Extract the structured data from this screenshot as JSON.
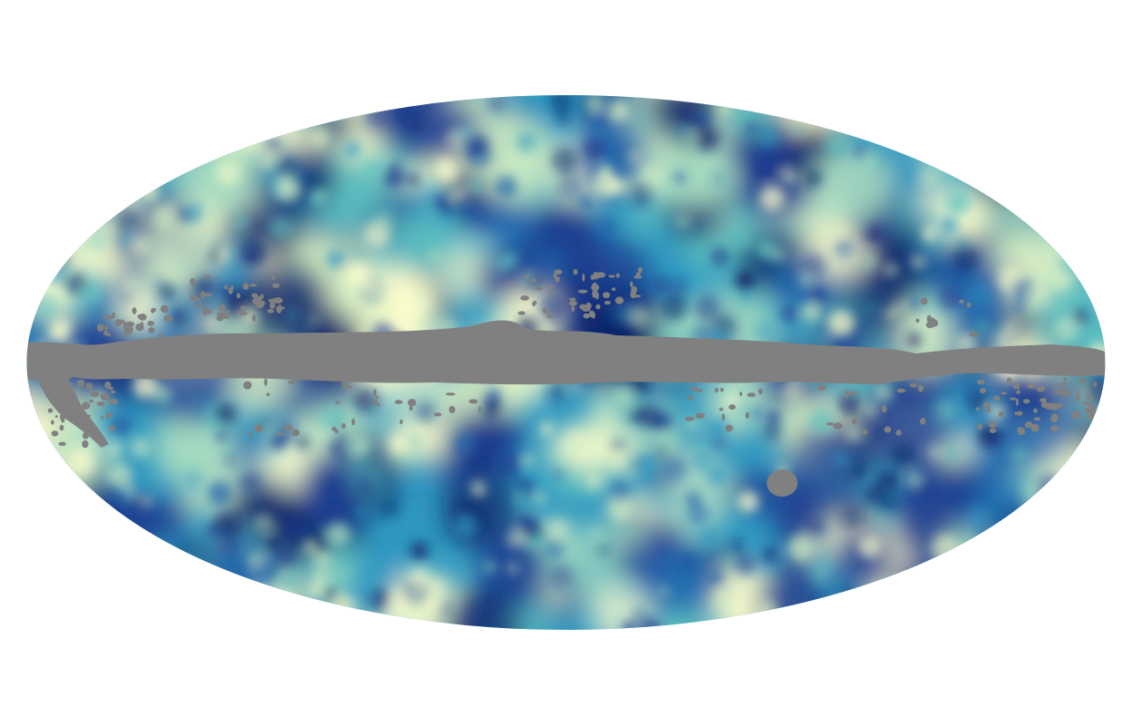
{
  "map": {
    "projection": "mollweide",
    "colormap": {
      "name": "YlGnBu",
      "stops": [
        "#fdfdcc",
        "#d9f0c4",
        "#a6dcc0",
        "#63c3c0",
        "#2f98c1",
        "#2466ab",
        "#1e3d8f",
        "#0c2166"
      ]
    },
    "background_color": "#ffffff",
    "mask_color": "#808080",
    "masked_regions": [
      "galactic-plane-mask",
      "point-source-masks",
      "large-ellipse-mask"
    ]
  }
}
